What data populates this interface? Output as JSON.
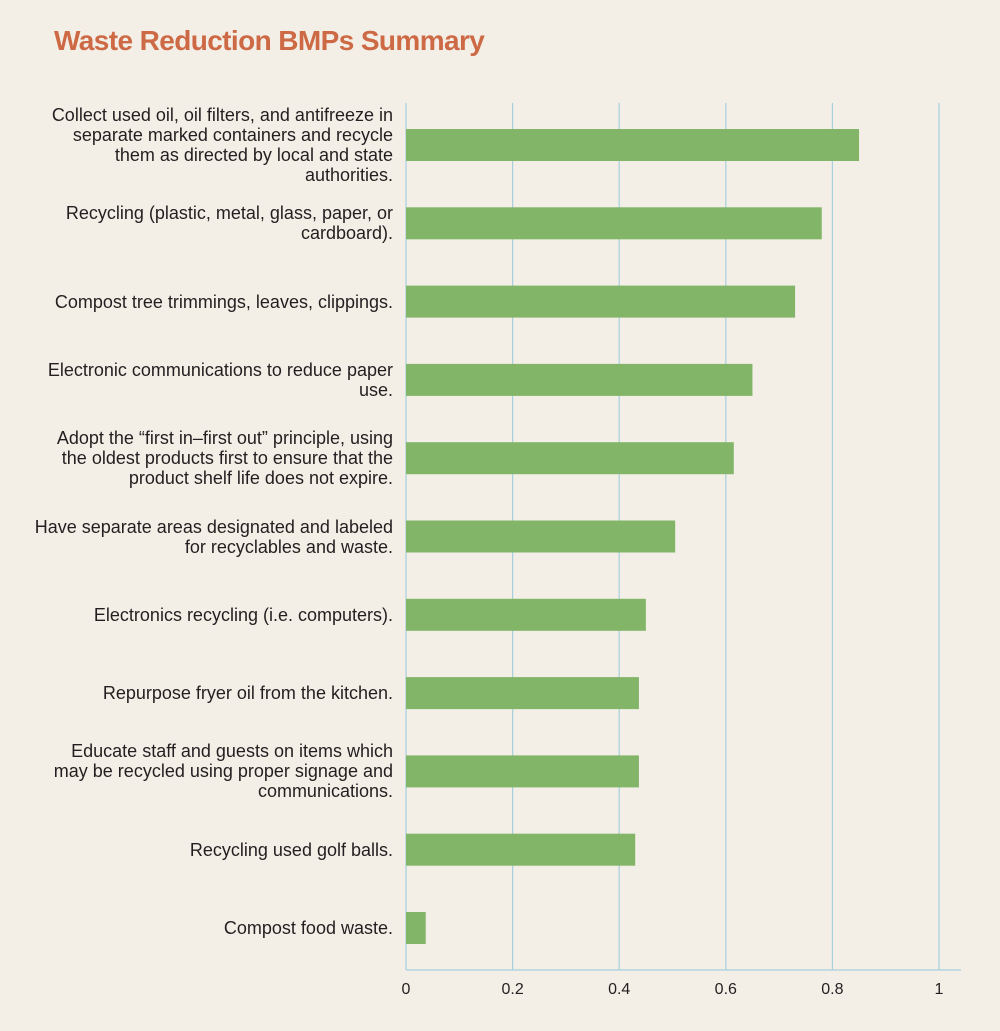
{
  "chart_data": {
    "type": "bar",
    "orientation": "horizontal",
    "title": "Waste Reduction BMPs Summary",
    "xlabel": "",
    "ylabel": "",
    "categories": [
      "Collect used oil, oil filters, and antifreeze in separate marked containers and recycle them as directed by local and state authorities.",
      "Recycling (plastic, metal, glass, paper, or cardboard).",
      "Compost tree trimmings, leaves, clippings.",
      "Electronic communications to reduce paper use.",
      "Adopt the “first in–first out” principle, using the oldest products first to ensure that the product shelf life does not expire.",
      "Have separate areas designated and labeled for recyclables and waste.",
      "Electronics recycling (i.e. computers).",
      "Repurpose fryer oil from the kitchen.",
      "Educate staff and guests on items which may be recycled using proper signage and communications.",
      "Recycling used golf balls.",
      "Compost food waste."
    ],
    "values": [
      0.85,
      0.78,
      0.73,
      0.65,
      0.615,
      0.505,
      0.45,
      0.437,
      0.437,
      0.43,
      0.037
    ],
    "xlim": [
      0,
      1.04
    ],
    "ticks": [
      0,
      0.2,
      0.4,
      0.6,
      0.8,
      1
    ],
    "tick_labels": [
      "0",
      "0.2",
      "0.4",
      "0.6",
      "0.8",
      "1"
    ],
    "grid": true,
    "legend": "none"
  },
  "colors": {
    "background": "#f3efe7",
    "title": "#cd6a45",
    "bar": "#82b567",
    "grid": "#a7cfde",
    "text": "#231f20"
  }
}
